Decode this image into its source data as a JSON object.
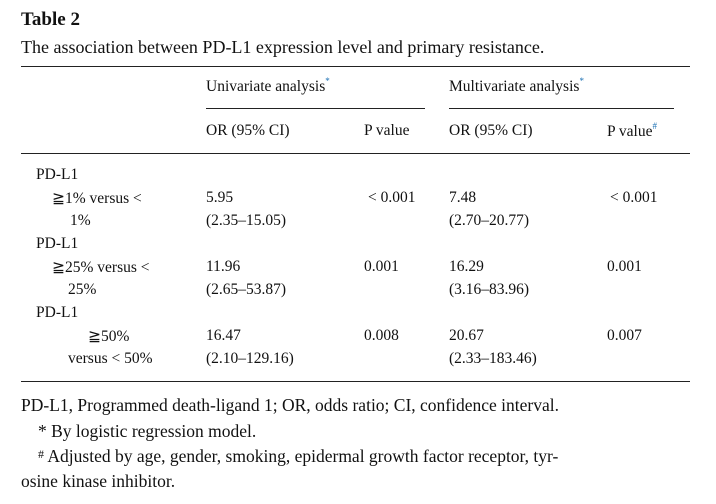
{
  "table": {
    "label": "Table 2",
    "caption": "The association between PD-L1 expression level and primary resistance.",
    "group_headers": [
      {
        "text": "Univariate analysis",
        "mark": "*"
      },
      {
        "text": "Multivariate analysis",
        "mark": "*"
      }
    ],
    "col_headers": [
      {
        "text": "OR (95% CI)",
        "mark": ""
      },
      {
        "text": "P value",
        "mark": ""
      },
      {
        "text": "OR (95% CI)",
        "mark": ""
      },
      {
        "text": "P value",
        "mark": "#"
      }
    ],
    "rows": [
      {
        "group": "PD-L1",
        "label_line1": "≧1% versus <",
        "label_line2": "1%",
        "uni_or": "5.95",
        "uni_ci": "(2.35–15.05)",
        "uni_p": "< 0.001",
        "multi_or": "7.48",
        "multi_ci": "(2.70–20.77)",
        "multi_p": "< 0.001"
      },
      {
        "group": "PD-L1",
        "label_line1": "≧25% versus <",
        "label_line2": "25%",
        "uni_or": "11.96",
        "uni_ci": "(2.65–53.87)",
        "uni_p": "0.001",
        "multi_or": "16.29",
        "multi_ci": "(3.16–83.96)",
        "multi_p": "0.001"
      },
      {
        "group": "PD-L1",
        "label_line1": "≧50%",
        "label_line2": "versus < 50%",
        "uni_or": "16.47",
        "uni_ci": "(2.10–129.16)",
        "uni_p": "0.008",
        "multi_or": "20.67",
        "multi_ci": "(2.33–183.46)",
        "multi_p": "0.007"
      }
    ],
    "footnotes": {
      "abbreviations": "PD-L1, Programmed death-ligand 1; OR, odds ratio; CI, confidence interval.",
      "note1_mark": "*",
      "note1_text": "By logistic regression model.",
      "note2_mark": "#",
      "note2_line1": "Adjusted by age, gender, smoking, epidermal growth factor receptor, tyr-",
      "note2_line2": "osine kinase inhibitor."
    }
  }
}
